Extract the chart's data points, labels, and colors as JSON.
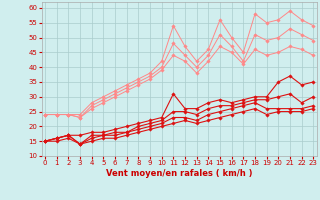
{
  "x": [
    0,
    1,
    2,
    3,
    4,
    5,
    6,
    7,
    8,
    9,
    10,
    11,
    12,
    13,
    14,
    15,
    16,
    17,
    18,
    19,
    20,
    21,
    22,
    23
  ],
  "series": [
    {
      "color": "#ff8888",
      "linewidth": 0.7,
      "marker": "D",
      "markersize": 1.8,
      "y": [
        24,
        24,
        24,
        24,
        28,
        30,
        32,
        34,
        36,
        38,
        42,
        54,
        47,
        42,
        46,
        56,
        50,
        45,
        58,
        55,
        56,
        59,
        56,
        54
      ]
    },
    {
      "color": "#ff8888",
      "linewidth": 0.7,
      "marker": "D",
      "markersize": 1.8,
      "y": [
        24,
        24,
        24,
        23,
        27,
        29,
        31,
        33,
        35,
        37,
        40,
        48,
        44,
        40,
        44,
        51,
        47,
        42,
        51,
        49,
        50,
        53,
        51,
        49
      ]
    },
    {
      "color": "#ff8888",
      "linewidth": 0.7,
      "marker": "D",
      "markersize": 1.8,
      "y": [
        24,
        24,
        24,
        23,
        26,
        28,
        30,
        32,
        34,
        36,
        39,
        44,
        42,
        38,
        42,
        47,
        45,
        41,
        46,
        44,
        45,
        47,
        46,
        44
      ]
    },
    {
      "color": "#dd1111",
      "linewidth": 0.8,
      "marker": "D",
      "markersize": 1.8,
      "y": [
        15,
        16,
        17,
        17,
        18,
        18,
        19,
        20,
        21,
        22,
        23,
        31,
        26,
        26,
        28,
        29,
        28,
        29,
        30,
        30,
        35,
        37,
        34,
        35
      ]
    },
    {
      "color": "#dd1111",
      "linewidth": 0.8,
      "marker": "D",
      "markersize": 1.8,
      "y": [
        15,
        16,
        17,
        14,
        17,
        17,
        18,
        18,
        20,
        21,
        22,
        25,
        25,
        24,
        26,
        27,
        27,
        28,
        29,
        29,
        30,
        31,
        28,
        30
      ]
    },
    {
      "color": "#dd1111",
      "linewidth": 0.8,
      "marker": "D",
      "markersize": 1.8,
      "y": [
        15,
        16,
        17,
        14,
        16,
        17,
        17,
        18,
        19,
        20,
        21,
        23,
        23,
        22,
        24,
        25,
        26,
        27,
        28,
        26,
        26,
        26,
        26,
        27
      ]
    },
    {
      "color": "#dd1111",
      "linewidth": 0.8,
      "marker": "D",
      "markersize": 1.8,
      "y": [
        15,
        15,
        16,
        14,
        15,
        16,
        16,
        17,
        18,
        19,
        20,
        21,
        22,
        21,
        22,
        23,
        24,
        25,
        26,
        24,
        25,
        25,
        25,
        26
      ]
    }
  ],
  "xlabel": "Vent moyen/en rafales ( km/h )",
  "ylim": [
    10,
    62
  ],
  "xlim": [
    -0.3,
    23.3
  ],
  "yticks": [
    10,
    15,
    20,
    25,
    30,
    35,
    40,
    45,
    50,
    55,
    60
  ],
  "xticks": [
    0,
    1,
    2,
    3,
    4,
    5,
    6,
    7,
    8,
    9,
    10,
    11,
    12,
    13,
    14,
    15,
    16,
    17,
    18,
    19,
    20,
    21,
    22,
    23
  ],
  "background_color": "#d0eeee",
  "grid_color": "#aacccc",
  "tick_color": "#cc0000",
  "xlabel_color": "#cc0000"
}
